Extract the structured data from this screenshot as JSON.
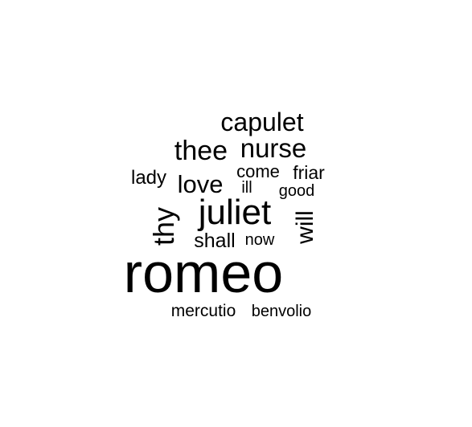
{
  "chart_data": {
    "type": "wordcloud",
    "words": [
      {
        "text": "romeo",
        "weight": 100,
        "rotated": false
      },
      {
        "text": "juliet",
        "weight": 62,
        "rotated": false
      },
      {
        "text": "thy",
        "weight": 52,
        "rotated": true
      },
      {
        "text": "thee",
        "weight": 48,
        "rotated": false
      },
      {
        "text": "nurse",
        "weight": 48,
        "rotated": false
      },
      {
        "text": "capulet",
        "weight": 45,
        "rotated": false
      },
      {
        "text": "will",
        "weight": 42,
        "rotated": true
      },
      {
        "text": "love",
        "weight": 40,
        "rotated": false
      },
      {
        "text": "shall",
        "weight": 36,
        "rotated": false
      },
      {
        "text": "lady",
        "weight": 34,
        "rotated": false
      },
      {
        "text": "friar",
        "weight": 32,
        "rotated": false
      },
      {
        "text": "come",
        "weight": 31,
        "rotated": false
      },
      {
        "text": "mercutio",
        "weight": 28,
        "rotated": false
      },
      {
        "text": "benvolio",
        "weight": 27,
        "rotated": false
      },
      {
        "text": "good",
        "weight": 27,
        "rotated": false
      },
      {
        "text": "now",
        "weight": 27,
        "rotated": false
      },
      {
        "text": "ill",
        "weight": 26,
        "rotated": false
      }
    ],
    "colors": {
      "text": "#000000",
      "background": "#ffffff"
    }
  }
}
